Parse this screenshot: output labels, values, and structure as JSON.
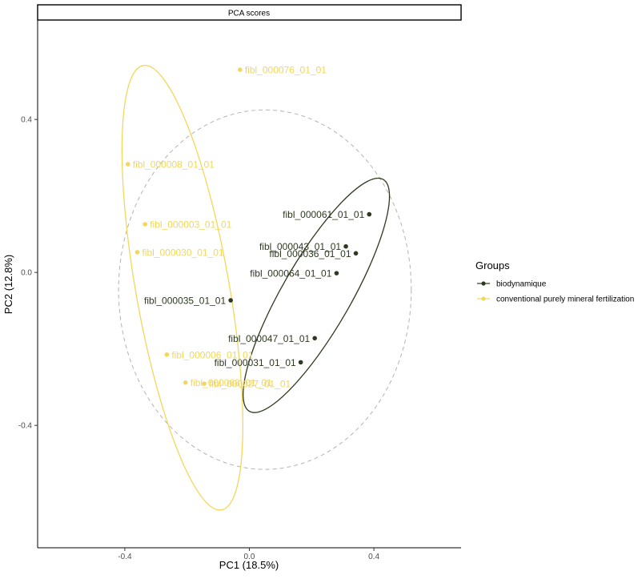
{
  "chart_data": {
    "type": "scatter",
    "title": "PCA scores",
    "xlabel": "PC1 (18.5%)",
    "ylabel": "PC2 (12.8%)",
    "xlim": [
      -0.68,
      0.68
    ],
    "ylim": [
      -0.72,
      0.66
    ],
    "x_ticks": [
      -0.4,
      0.0,
      0.4
    ],
    "x_tick_labels": [
      "-0.4",
      "0.0",
      "0.4"
    ],
    "y_ticks": [
      -0.4,
      0.0,
      0.4
    ],
    "y_tick_labels": [
      "-0.4",
      "0.0",
      "0.4"
    ],
    "grid": false,
    "legend": {
      "title": "Groups",
      "placement": "right",
      "entries": [
        "biodynamique",
        "conventional purely mineral fertilization"
      ]
    },
    "colors": {
      "biodynamique": "#2d3a1f",
      "conventional purely mineral fertilization": "#f2d75a",
      "circle": "#b3b3b3"
    },
    "series": [
      {
        "name": "biodynamique",
        "points": [
          {
            "label": "fibl_000061_01_01",
            "x": 0.385,
            "y": 0.152
          },
          {
            "label": "fibl_000043_01_01",
            "x": 0.31,
            "y": 0.068
          },
          {
            "label": "fibl_000036_01_01",
            "x": 0.342,
            "y": 0.05
          },
          {
            "label": "fibl_000064_01_01",
            "x": 0.28,
            "y": -0.002
          },
          {
            "label": "fibl_000035_01_01",
            "x": -0.06,
            "y": -0.073
          },
          {
            "label": "fibl_000047_01_01",
            "x": 0.21,
            "y": -0.172
          },
          {
            "label": "fibl_000031_01_01",
            "x": 0.165,
            "y": -0.235
          }
        ]
      },
      {
        "name": "conventional purely mineral fertilization",
        "points": [
          {
            "label": "fibl_000076_01_01",
            "x": -0.03,
            "y": 0.53
          },
          {
            "label": "fibl_000008_01_01",
            "x": -0.39,
            "y": 0.283
          },
          {
            "label": "fibl_000003_01_01",
            "x": -0.335,
            "y": 0.126
          },
          {
            "label": "fibl_000030_01_01",
            "x": -0.36,
            "y": 0.053
          },
          {
            "label": "fibl_000006_01_01",
            "x": -0.265,
            "y": -0.215
          },
          {
            "label": "fibl_000068_01_01",
            "x": -0.205,
            "y": -0.288
          },
          {
            "label": "fibl_000027_01_01",
            "x": -0.145,
            "y": -0.291
          }
        ]
      }
    ],
    "confidence_ellipses": [
      {
        "series": "biodynamique",
        "cx": 0.215,
        "cy": -0.06,
        "rx": 0.11,
        "ry": 0.35,
        "angle_deg": 30
      },
      {
        "series": "conventional purely mineral fertilization",
        "cx": -0.215,
        "cy": -0.04,
        "rx": 0.15,
        "ry": 0.59,
        "angle_deg": -10
      }
    ],
    "correlation_circle": {
      "cx": 0.05,
      "cy": -0.045,
      "r": 0.47,
      "style": "dashed"
    }
  }
}
